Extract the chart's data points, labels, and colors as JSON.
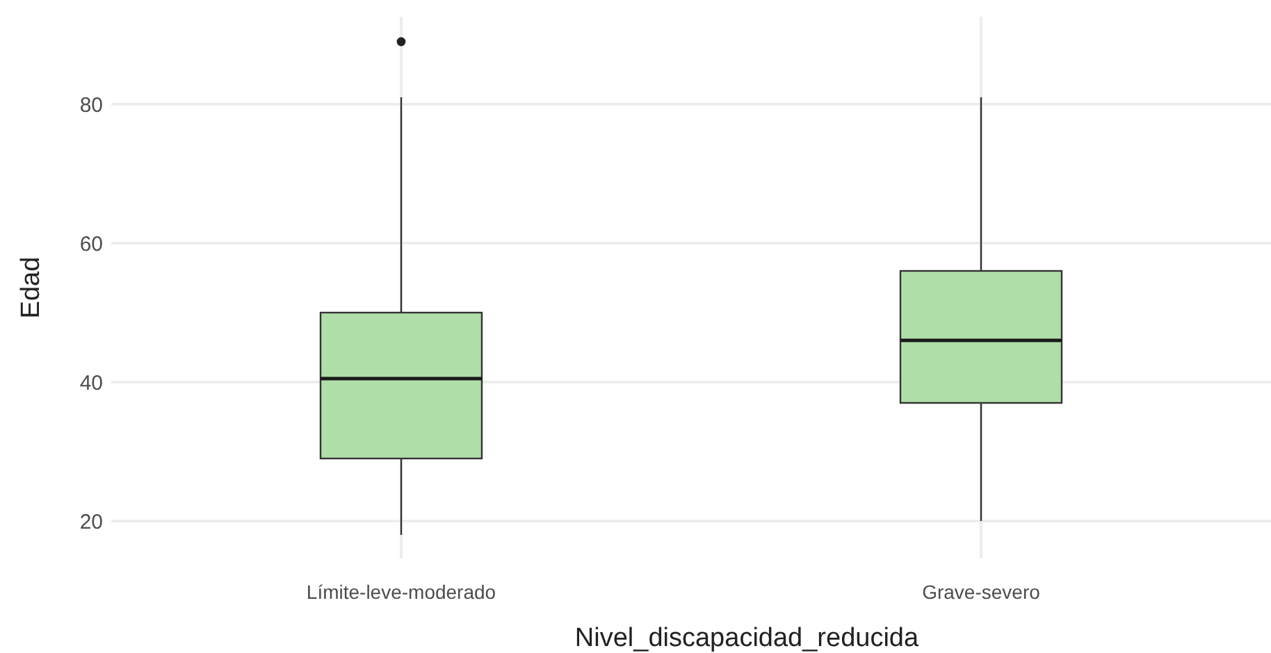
{
  "chart_data": {
    "type": "box",
    "xlabel": "Nivel_discapacidad_reducida",
    "ylabel": "Edad",
    "categories": [
      "Límite-leve-moderado",
      "Grave-severo"
    ],
    "boxes": [
      {
        "low": 18,
        "q1": 29,
        "median": 40.5,
        "q3": 50,
        "high": 81,
        "outliers": [
          89
        ]
      },
      {
        "low": 20,
        "q1": 37,
        "median": 46,
        "q3": 56,
        "high": 81
      }
    ],
    "color": "#b0dea8",
    "ylim": [
      14.6,
      92.6
    ],
    "yticks": [
      20,
      40,
      60,
      80
    ],
    "grid": true
  }
}
